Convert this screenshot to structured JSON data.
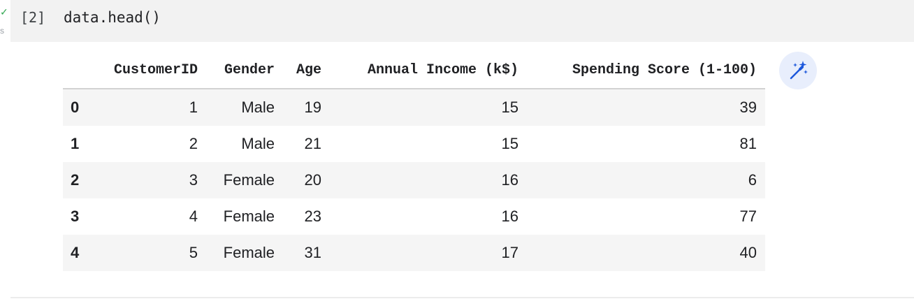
{
  "cell": {
    "status_icon": "check-icon",
    "status_unit": "s",
    "exec_count": "[2]",
    "code": "data.head()"
  },
  "output": {
    "columns": [
      "",
      "CustomerID",
      "Gender",
      "Age",
      "Annual Income (k$)",
      "Spending Score (1-100)"
    ],
    "rows": [
      {
        "index": "0",
        "customer_id": "1",
        "gender": "Male",
        "age": "19",
        "income": "15",
        "score": "39"
      },
      {
        "index": "1",
        "customer_id": "2",
        "gender": "Male",
        "age": "21",
        "income": "15",
        "score": "81"
      },
      {
        "index": "2",
        "customer_id": "3",
        "gender": "Female",
        "age": "20",
        "income": "16",
        "score": "6"
      },
      {
        "index": "3",
        "customer_id": "4",
        "gender": "Female",
        "age": "23",
        "income": "16",
        "score": "77"
      },
      {
        "index": "4",
        "customer_id": "5",
        "gender": "Female",
        "age": "31",
        "income": "17",
        "score": "40"
      }
    ],
    "suggest_icon": "magic-wand-sparkle-icon"
  },
  "colors": {
    "cell_bg": "#f2f2f2",
    "row_stripe": "#f5f5f5",
    "success": "#34a853",
    "accent": "#1a56db"
  }
}
